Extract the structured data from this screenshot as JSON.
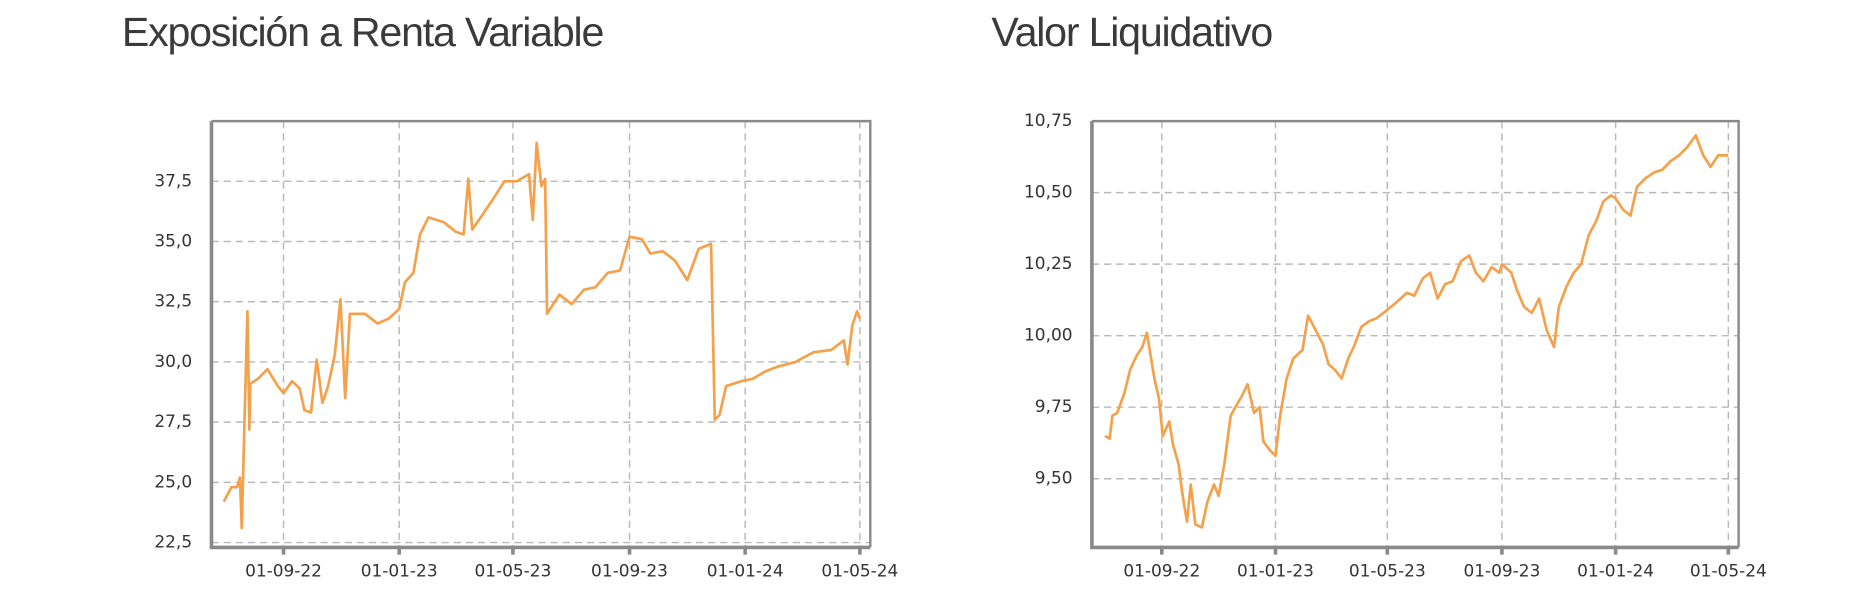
{
  "chart_data": [
    {
      "type": "line",
      "title": "Exposición a Renta Variable",
      "color": "#f5a04a",
      "grid": true,
      "x": [
        "30-06-22",
        "08-07-22",
        "14-07-22",
        "17-07-22",
        "19-07-22",
        "22-07-22",
        "25-07-22",
        "27-07-22",
        "28-07-22",
        "05-08-22",
        "15-08-22",
        "26-08-22",
        "01-09-22",
        "10-09-22",
        "18-09-22",
        "23-09-22",
        "30-09-22",
        "06-10-22",
        "12-10-22",
        "18-10-22",
        "25-10-22",
        "31-10-22",
        "05-11-22",
        "10-11-22",
        "26-11-22",
        "09-12-22",
        "21-12-22",
        "01-01-23",
        "07-01-23",
        "16-01-23",
        "23-01-23",
        "01-02-23",
        "17-02-23",
        "02-03-23",
        "10-03-23",
        "15-03-23",
        "19-03-23",
        "28-03-23",
        "09-04-23",
        "22-04-23",
        "05-05-23",
        "18-05-23",
        "22-05-23",
        "26-05-23",
        "31-05-23",
        "04-06-23",
        "06-06-23",
        "19-06-23",
        "02-07-23",
        "15-07-23",
        "27-07-23",
        "09-08-23",
        "22-08-23",
        "01-09-23",
        "14-09-23",
        "23-09-23",
        "06-10-23",
        "19-10-23",
        "01-11-23",
        "13-11-23",
        "26-11-23",
        "30-11-23",
        "05-12-23",
        "12-12-23",
        "28-12-23",
        "09-01-24",
        "22-01-24",
        "04-02-24",
        "23-02-24",
        "13-03-24",
        "01-04-24",
        "14-04-24",
        "18-04-24",
        "23-04-24",
        "28-04-24",
        "01-05-24"
      ],
      "values": [
        24.2,
        24.8,
        24.8,
        25.2,
        23.1,
        27.8,
        32.1,
        27.2,
        29.1,
        29.3,
        29.7,
        29.0,
        28.7,
        29.2,
        28.9,
        28.0,
        27.9,
        30.1,
        28.3,
        29.0,
        30.3,
        32.6,
        28.5,
        32.0,
        32.0,
        31.6,
        31.8,
        32.2,
        33.3,
        33.7,
        35.3,
        36.0,
        35.8,
        35.4,
        35.3,
        37.6,
        35.5,
        36.0,
        36.7,
        37.5,
        37.5,
        37.8,
        35.9,
        39.1,
        37.3,
        37.6,
        32.0,
        32.8,
        32.4,
        33.0,
        33.1,
        33.7,
        33.8,
        35.2,
        35.1,
        34.5,
        34.6,
        34.2,
        33.4,
        34.7,
        34.9,
        27.6,
        27.8,
        29.0,
        29.2,
        29.3,
        29.6,
        29.8,
        30.0,
        30.4,
        30.5,
        30.9,
        29.9,
        31.5,
        32.1,
        31.8
      ],
      "xlim": [
        "17-06-22",
        "12-05-24"
      ],
      "xticks": [
        "01-09-22",
        "01-01-23",
        "01-05-23",
        "01-09-23",
        "01-01-24",
        "01-05-24"
      ],
      "ylim": [
        22.3,
        40.0
      ],
      "yticks": [
        {
          "value": 22.5,
          "label": "22,5"
        },
        {
          "value": 25.0,
          "label": "25,0"
        },
        {
          "value": 27.5,
          "label": "27,5"
        },
        {
          "value": 30.0,
          "label": "30,0"
        },
        {
          "value": 32.5,
          "label": "32,5"
        },
        {
          "value": 35.0,
          "label": "35,0"
        },
        {
          "value": 37.5,
          "label": "37,5"
        }
      ]
    },
    {
      "type": "line",
      "title": "Valor Liquidativo",
      "color": "#f5a04a",
      "grid": true,
      "x": [
        "02-07-22",
        "07-07-22",
        "10-07-22",
        "15-07-22",
        "23-07-22",
        "29-07-22",
        "05-08-22",
        "11-08-22",
        "16-08-22",
        "20-08-22",
        "24-08-22",
        "29-08-22",
        "02-09-22",
        "09-09-22",
        "13-09-22",
        "19-09-22",
        "23-09-22",
        "28-09-22",
        "02-10-22",
        "07-10-22",
        "14-10-22",
        "20-10-22",
        "27-10-22",
        "01-11-22",
        "07-11-22",
        "14-11-22",
        "19-11-22",
        "26-11-22",
        "02-12-22",
        "09-12-22",
        "15-12-22",
        "19-12-22",
        "26-12-22",
        "01-01-23",
        "06-01-23",
        "13-01-23",
        "20-01-23",
        "30-01-23",
        "05-02-23",
        "13-02-23",
        "21-02-23",
        "27-02-23",
        "06-03-23",
        "13-03-23",
        "20-03-23",
        "26-03-23",
        "03-04-23",
        "11-04-23",
        "19-04-23",
        "27-04-23",
        "01-05-23",
        "12-05-23",
        "22-05-23",
        "30-05-23",
        "08-06-23",
        "16-06-23",
        "24-06-23",
        "02-07-23",
        "10-07-23",
        "19-07-23",
        "28-07-23",
        "04-08-23",
        "12-08-23",
        "21-08-23",
        "29-08-23",
        "01-09-23",
        "11-09-23",
        "17-09-23",
        "25-09-23",
        "03-10-23",
        "11-10-23",
        "19-10-23",
        "27-10-23",
        "01-11-23",
        "09-11-23",
        "17-11-23",
        "25-11-23",
        "03-12-23",
        "11-12-23",
        "19-12-23",
        "27-12-23",
        "01-01-24",
        "09-01-24",
        "17-01-24",
        "24-01-24",
        "02-02-24",
        "11-02-24",
        "20-02-24",
        "29-02-24",
        "09-03-24",
        "18-03-24",
        "27-03-24",
        "04-04-24",
        "12-04-24",
        "20-04-24",
        "01-05-24"
      ],
      "values": [
        9.65,
        9.64,
        9.72,
        9.73,
        9.8,
        9.88,
        9.93,
        9.96,
        10.01,
        9.93,
        9.85,
        9.78,
        9.65,
        9.7,
        9.62,
        9.55,
        9.45,
        9.35,
        9.48,
        9.34,
        9.33,
        9.42,
        9.48,
        9.44,
        9.55,
        9.72,
        9.75,
        9.79,
        9.83,
        9.73,
        9.75,
        9.63,
        9.6,
        9.58,
        9.72,
        9.85,
        9.92,
        9.95,
        10.07,
        10.02,
        9.97,
        9.9,
        9.88,
        9.85,
        9.92,
        9.96,
        10.03,
        10.05,
        10.06,
        10.08,
        10.09,
        10.12,
        10.15,
        10.14,
        10.2,
        10.22,
        10.13,
        10.18,
        10.19,
        10.26,
        10.28,
        10.22,
        10.19,
        10.24,
        10.22,
        10.25,
        10.22,
        10.16,
        10.1,
        10.08,
        10.13,
        10.02,
        9.96,
        10.1,
        10.17,
        10.22,
        10.25,
        10.35,
        10.4,
        10.47,
        10.49,
        10.48,
        10.44,
        10.42,
        10.52,
        10.55,
        10.57,
        10.58,
        10.61,
        10.63,
        10.66,
        10.7,
        10.63,
        10.59,
        10.63,
        10.63
      ],
      "xlim": [
        "18-06-22",
        "12-05-24"
      ],
      "xticks": [
        "01-09-22",
        "01-01-23",
        "01-05-23",
        "01-09-23",
        "01-01-24",
        "01-05-24"
      ],
      "ylim": [
        9.26,
        10.75
      ],
      "yticks": [
        {
          "value": 9.5,
          "label": "9,50"
        },
        {
          "value": 9.75,
          "label": "9,75"
        },
        {
          "value": 10.0,
          "label": "10,00"
        },
        {
          "value": 10.25,
          "label": "10,25"
        },
        {
          "value": 10.5,
          "label": "10,50"
        },
        {
          "value": 10.75,
          "label": "10,75"
        }
      ]
    }
  ]
}
